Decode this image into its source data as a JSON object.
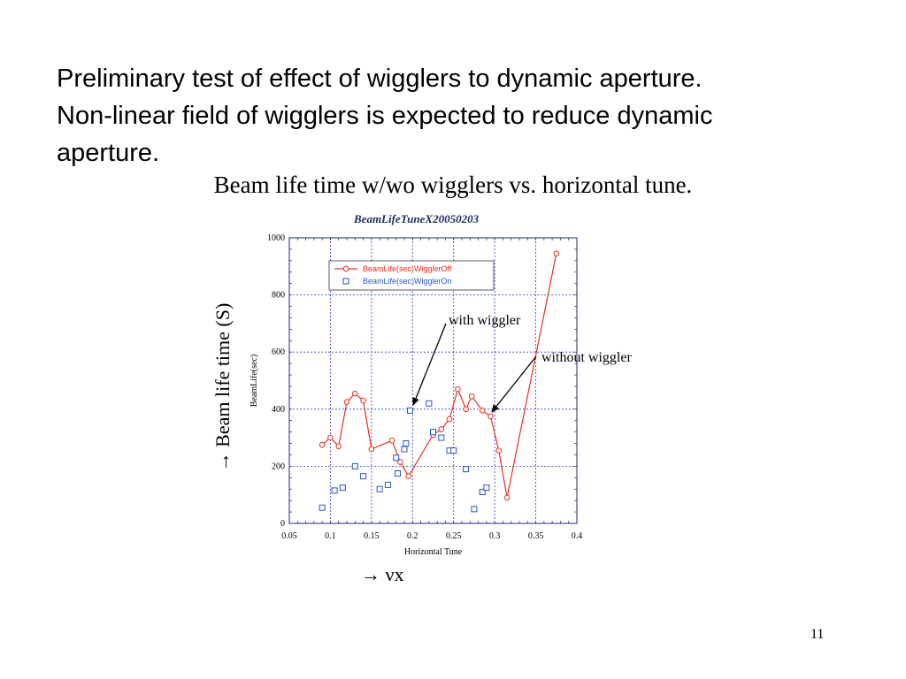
{
  "slide": {
    "lines": [
      "Preliminary test of effect of wigglers to dynamic aperture.",
      "Non-linear field of wigglers is expected to reduce dynamic",
      "aperture."
    ],
    "caption": "Beam life time w/wo wigglers vs. horizontal tune.",
    "ylabel_big": "→ Beam life time (S)",
    "xlabel_big": "→ νx",
    "annotation_with": "with wiggler",
    "annotation_without": "without wiggler",
    "page_number": "11"
  },
  "chart_data": {
    "type": "scatter",
    "title": "BeamLifeTuneX20050203",
    "xlabel": "Horizontal Tune",
    "ylabel": "BeamLife(sec)",
    "xlim": [
      0.05,
      0.4
    ],
    "ylim": [
      0,
      1000
    ],
    "xticks": [
      0.05,
      0.1,
      0.15,
      0.2,
      0.25,
      0.3,
      0.35,
      0.4
    ],
    "yticks": [
      0,
      200,
      400,
      600,
      800,
      1000
    ],
    "grid": true,
    "legend_position": "top-left",
    "series": [
      {
        "name": "BeamLife(sec)WigglerOff",
        "style": "line-circle",
        "color": "#e8301f",
        "x": [
          0.09,
          0.1,
          0.11,
          0.12,
          0.13,
          0.14,
          0.15,
          0.175,
          0.185,
          0.195,
          0.225,
          0.235,
          0.245,
          0.255,
          0.265,
          0.272,
          0.285,
          0.295,
          0.305,
          0.315,
          0.375
        ],
        "y": [
          275,
          300,
          270,
          425,
          455,
          430,
          260,
          290,
          215,
          165,
          310,
          330,
          365,
          470,
          400,
          445,
          395,
          375,
          255,
          90,
          945
        ]
      },
      {
        "name": "BeamLife(sec)WigglerOn",
        "style": "square",
        "color": "#2a55c8",
        "x": [
          0.09,
          0.105,
          0.115,
          0.13,
          0.14,
          0.16,
          0.17,
          0.18,
          0.182,
          0.19,
          0.192,
          0.197,
          0.22,
          0.225,
          0.235,
          0.245,
          0.25,
          0.265,
          0.275,
          0.285,
          0.29
        ],
        "y": [
          55,
          115,
          125,
          200,
          165,
          120,
          135,
          230,
          175,
          260,
          280,
          395,
          420,
          320,
          300,
          255,
          255,
          190,
          50,
          110,
          125
        ]
      }
    ]
  }
}
